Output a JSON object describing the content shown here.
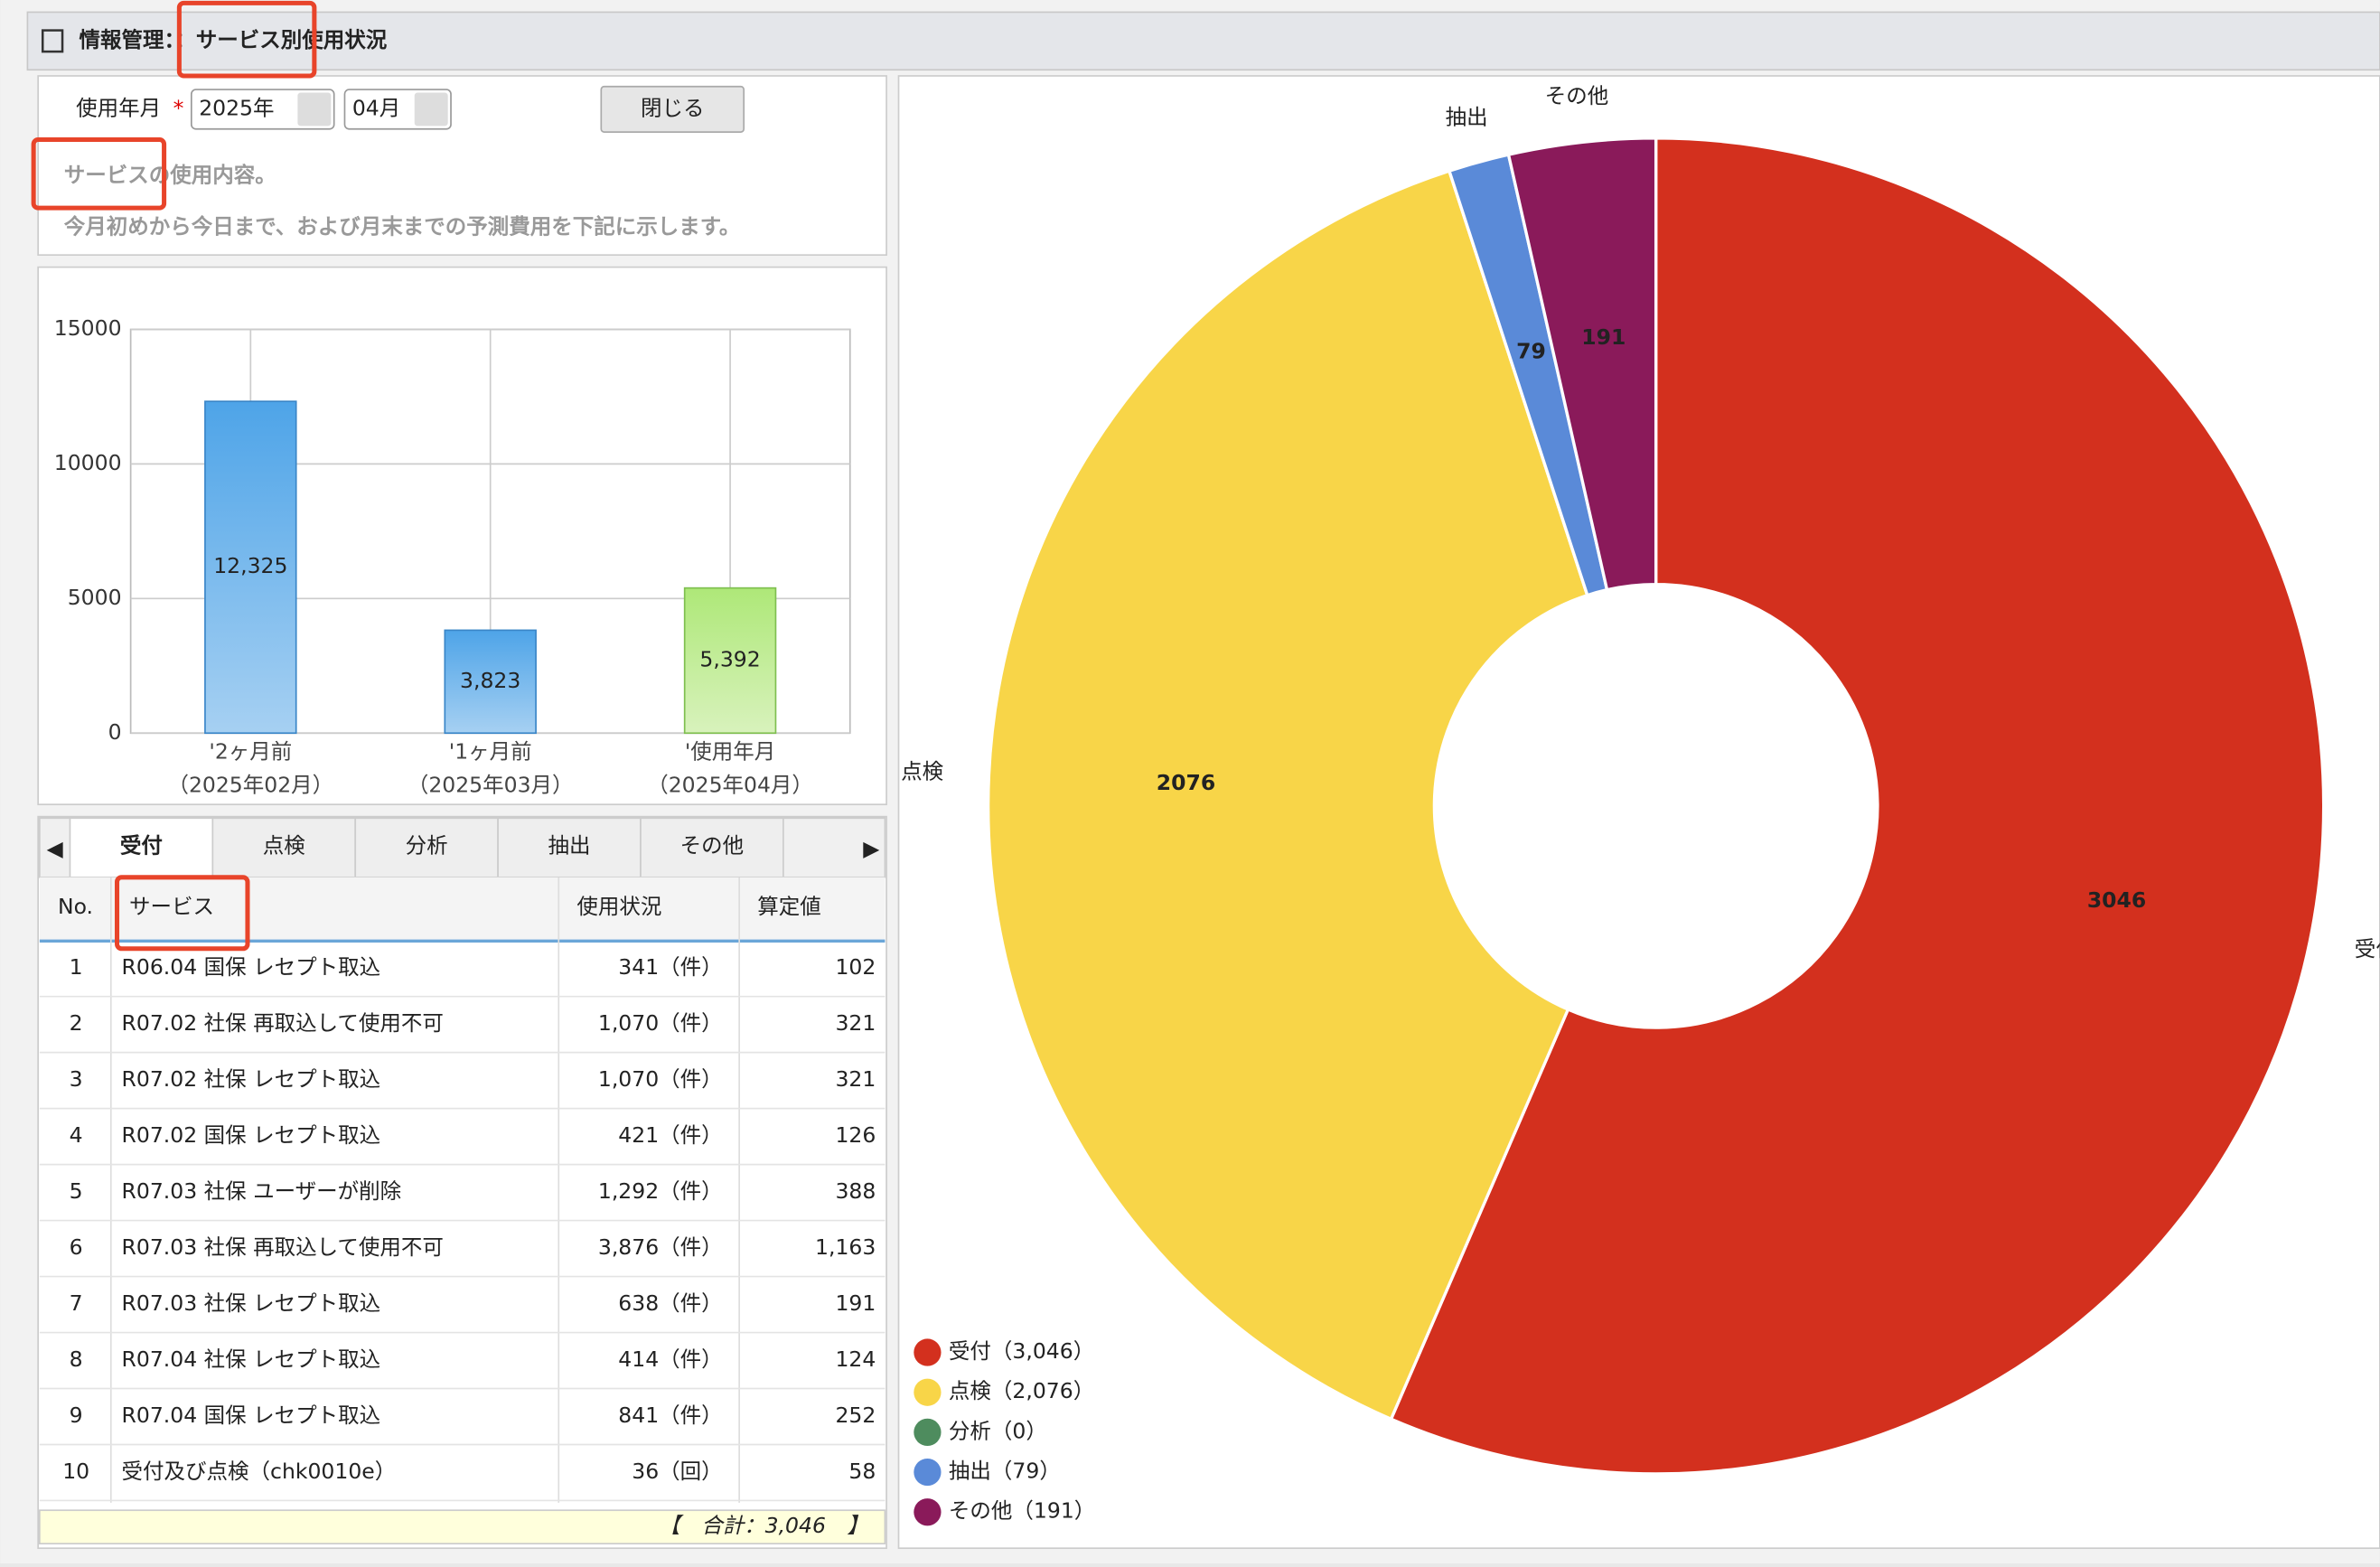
{
  "header": {
    "title": "情報管理：：サービス別使用状況"
  },
  "form": {
    "label": "使用年月",
    "required": "*",
    "year": "2025年",
    "month": "04月",
    "close_button": "閉じる"
  },
  "description": [
    "サービスの使用内容。",
    "今月初めから今日まで、および月末までの予測費用を下記に示します。"
  ],
  "bar_chart": {
    "type": "bar",
    "categories": [
      "'2ヶ月前",
      "'1ヶ月前",
      "'使用年月"
    ],
    "periods": [
      "（2025年02月）",
      "（2025年03月）",
      "（2025年04月）"
    ],
    "values": [
      12325,
      3823,
      5392
    ],
    "value_labels": [
      "12,325",
      "3,823",
      "5,392"
    ],
    "colors": [
      "#56a8e8",
      "#56a8e8",
      "#b4ea7a"
    ],
    "ylim": [
      0,
      15000
    ],
    "yticks": [
      0,
      5000,
      10000,
      15000
    ],
    "grid": true
  },
  "tabs": [
    "受付",
    "点検",
    "分析",
    "抽出",
    "その他"
  ],
  "table": {
    "columns": [
      "No.",
      "サービス",
      "使用状況",
      "算定値"
    ],
    "rows": [
      [
        "1",
        "R06.04 国保 レセプト取込",
        "341（件）",
        "102"
      ],
      [
        "2",
        "R07.02 社保 再取込して使用不可",
        "1,070（件）",
        "321"
      ],
      [
        "3",
        "R07.02 社保 レセプト取込",
        "1,070（件）",
        "321"
      ],
      [
        "4",
        "R07.02 国保 レセプト取込",
        "421（件）",
        "126"
      ],
      [
        "5",
        "R07.03 社保 ユーザーが削除",
        "1,292（件）",
        "388"
      ],
      [
        "6",
        "R07.03 社保 再取込して使用不可",
        "3,876（件）",
        "1,163"
      ],
      [
        "7",
        "R07.03 社保 レセプト取込",
        "638（件）",
        "191"
      ],
      [
        "8",
        "R07.04 社保 レセプト取込",
        "414（件）",
        "124"
      ],
      [
        "9",
        "R07.04 国保 レセプト取込",
        "841（件）",
        "252"
      ],
      [
        "10",
        "受付及び点検（chk0010e）",
        "36（回）",
        "58"
      ]
    ],
    "total": "【　合計：3,046　】"
  },
  "pie_chart": {
    "type": "donut",
    "categories": [
      "受付",
      "点検",
      "分析",
      "抽出",
      "その他"
    ],
    "values": [
      3046,
      2076,
      0,
      79,
      191
    ],
    "colors": [
      "#d3301e",
      "#f8d548",
      "#4e8c5e",
      "#5a8ad8",
      "#8a1a5a"
    ],
    "legend": [
      "受付（3,046）",
      "点検（2,076）",
      "分析（0）",
      "抽出（79）",
      "その他（191）"
    ]
  }
}
